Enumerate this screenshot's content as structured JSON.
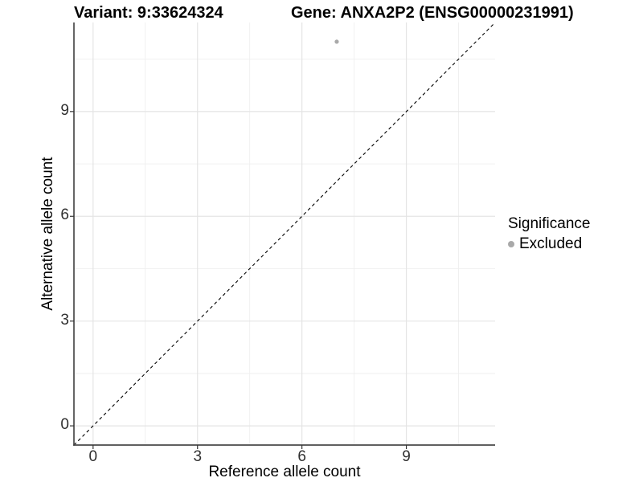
{
  "header": {
    "variant_title": "Variant: 9:33624324",
    "gene_title": "Gene: ANXA2P2 (ENSG00000231991)"
  },
  "chart_data": {
    "type": "scatter",
    "title": "Variant: 9:33624324 / Gene: ANXA2P2 (ENSG00000231991)",
    "xlabel": "Reference allele count",
    "ylabel": "Alternative allele count",
    "xlim": [
      -0.55,
      11.55
    ],
    "ylim": [
      -0.55,
      11.55
    ],
    "x_ticks": [
      0,
      3,
      6,
      9
    ],
    "y_ticks": [
      0,
      3,
      6,
      9
    ],
    "x_minor_ticks": [
      1.5,
      4.5,
      7.5,
      10.5
    ],
    "y_minor_ticks": [
      1.5,
      4.5,
      7.5,
      10.5
    ],
    "grid": true,
    "reference_line": {
      "type": "identity",
      "equation": "y = x",
      "style": "dashed",
      "color": "#000000"
    },
    "series": [
      {
        "name": "Excluded",
        "color": "#a9a9a9",
        "points": [
          {
            "x": 7,
            "y": 11
          }
        ]
      }
    ],
    "legend_position": "right"
  },
  "legend": {
    "title": "Significance",
    "items": [
      {
        "label": "Excluded",
        "color": "#a9a9a9"
      }
    ]
  },
  "colors": {
    "background": "#ffffff",
    "grid_major": "#e4e4e4",
    "grid_minor": "#efefef",
    "axis_line": "#4a4a4a",
    "tick_mark": "#333333",
    "tick_label": "#303030",
    "point": "#a9a9a9",
    "reference_line": "#000000"
  }
}
